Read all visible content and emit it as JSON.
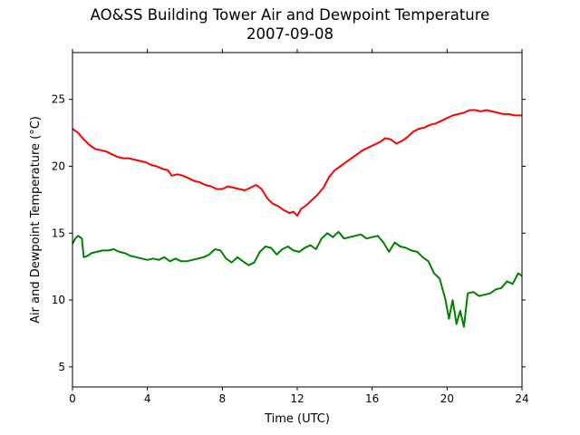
{
  "chart_data": {
    "type": "line",
    "title": "AO&SS Building Tower Air and Dewpoint Temperature",
    "subtitle": "2007-09-08",
    "xlabel": "Time (UTC)",
    "ylabel": "Air and Dewpoint Temperature (°C)",
    "xlim": [
      0,
      24
    ],
    "ylim": [
      3.5,
      28.5
    ],
    "xticks": [
      0,
      4,
      8,
      12,
      16,
      20,
      24
    ],
    "yticks": [
      5,
      10,
      15,
      20,
      25
    ],
    "grid": false,
    "legend": "none",
    "series": [
      {
        "color": "#ff0000",
        "x": [
          0,
          0.3,
          0.6,
          0.9,
          1.2,
          1.5,
          1.8,
          2.1,
          2.4,
          2.7,
          3.0,
          3.3,
          3.6,
          3.9,
          4.2,
          4.5,
          4.8,
          5.1,
          5.3,
          5.6,
          5.9,
          6.2,
          6.5,
          6.8,
          7.1,
          7.4,
          7.7,
          8.0,
          8.3,
          8.6,
          8.9,
          9.2,
          9.5,
          9.8,
          10.1,
          10.4,
          10.7,
          11.0,
          11.3,
          11.6,
          11.8,
          12.0,
          12.2,
          12.5,
          12.8,
          13.1,
          13.4,
          13.7,
          14.0,
          14.3,
          14.6,
          14.9,
          15.2,
          15.5,
          15.8,
          16.1,
          16.4,
          16.7,
          17.0,
          17.3,
          17.6,
          17.9,
          18.2,
          18.5,
          18.8,
          19.1,
          19.4,
          19.7,
          20.0,
          20.3,
          20.6,
          20.9,
          21.2,
          21.5,
          21.8,
          22.1,
          22.4,
          22.7,
          23.0,
          23.3,
          23.6,
          24.0
        ],
        "y": [
          22.8,
          22.5,
          22.0,
          21.6,
          21.3,
          21.2,
          21.1,
          20.9,
          20.7,
          20.6,
          20.6,
          20.5,
          20.4,
          20.3,
          20.1,
          20.0,
          19.8,
          19.7,
          19.3,
          19.4,
          19.3,
          19.1,
          18.9,
          18.8,
          18.6,
          18.5,
          18.3,
          18.3,
          18.5,
          18.4,
          18.3,
          18.2,
          18.4,
          18.6,
          18.3,
          17.6,
          17.2,
          17.0,
          16.7,
          16.5,
          16.6,
          16.3,
          16.8,
          17.1,
          17.5,
          17.9,
          18.4,
          19.2,
          19.7,
          20.0,
          20.3,
          20.6,
          20.9,
          21.2,
          21.4,
          21.6,
          21.8,
          22.1,
          22.0,
          21.7,
          21.9,
          22.2,
          22.6,
          22.8,
          22.9,
          23.1,
          23.2,
          23.4,
          23.6,
          23.8,
          23.9,
          24.0,
          24.2,
          24.2,
          24.1,
          24.2,
          24.1,
          24.0,
          23.9,
          23.9,
          23.8,
          23.8
        ]
      },
      {
        "color": "#008000",
        "x": [
          0,
          0.15,
          0.3,
          0.5,
          0.6,
          0.8,
          1.0,
          1.3,
          1.6,
          1.9,
          2.2,
          2.5,
          2.8,
          3.1,
          3.4,
          3.7,
          4.0,
          4.3,
          4.6,
          4.9,
          5.2,
          5.5,
          5.8,
          6.1,
          6.4,
          6.7,
          7.0,
          7.3,
          7.6,
          7.9,
          8.2,
          8.5,
          8.8,
          9.1,
          9.4,
          9.7,
          10.0,
          10.3,
          10.6,
          10.9,
          11.2,
          11.5,
          11.8,
          12.1,
          12.4,
          12.7,
          13.0,
          13.3,
          13.6,
          13.9,
          14.2,
          14.5,
          14.8,
          15.1,
          15.4,
          15.7,
          16.0,
          16.3,
          16.6,
          16.9,
          17.2,
          17.5,
          17.8,
          18.1,
          18.4,
          18.7,
          19.0,
          19.3,
          19.6,
          19.9,
          20.1,
          20.3,
          20.5,
          20.7,
          20.9,
          21.1,
          21.4,
          21.7,
          22.0,
          22.3,
          22.6,
          22.9,
          23.2,
          23.5,
          23.8,
          24.0
        ],
        "y": [
          14.2,
          14.6,
          14.8,
          14.6,
          13.2,
          13.3,
          13.5,
          13.6,
          13.7,
          13.7,
          13.8,
          13.6,
          13.5,
          13.3,
          13.2,
          13.1,
          13.0,
          13.1,
          13.0,
          13.2,
          12.9,
          13.1,
          12.9,
          12.9,
          13.0,
          13.1,
          13.2,
          13.4,
          13.8,
          13.7,
          13.1,
          12.8,
          13.2,
          12.9,
          12.6,
          12.8,
          13.6,
          14.0,
          13.9,
          13.4,
          13.8,
          14.0,
          13.7,
          13.6,
          13.9,
          14.1,
          13.8,
          14.6,
          15.0,
          14.7,
          15.1,
          14.6,
          14.7,
          14.8,
          14.9,
          14.6,
          14.7,
          14.8,
          14.3,
          13.6,
          14.3,
          14.0,
          13.9,
          13.7,
          13.6,
          13.2,
          12.9,
          12.0,
          11.6,
          10.1,
          8.6,
          10.0,
          8.2,
          9.2,
          8.0,
          10.5,
          10.6,
          10.3,
          10.4,
          10.5,
          10.8,
          10.9,
          11.4,
          11.2,
          12.0,
          11.8
        ]
      }
    ]
  }
}
